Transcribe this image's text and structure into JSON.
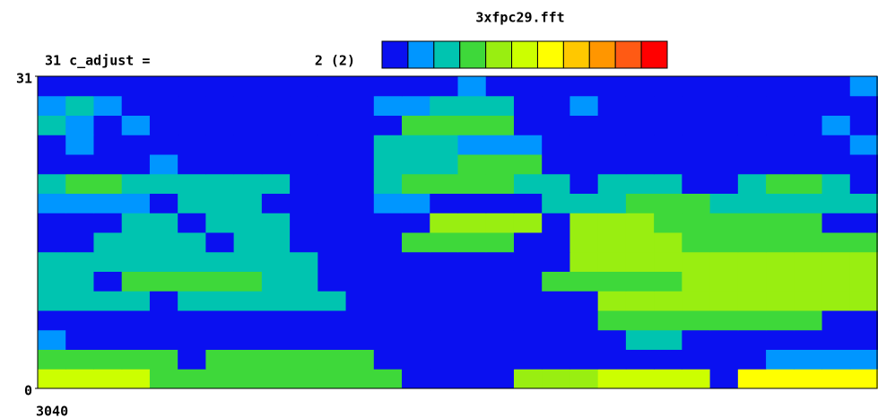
{
  "chart_data": {
    "type": "heatmap",
    "title": "3xfpc29.fft",
    "c_adjust_label": "31 c_adjust =",
    "c_adjust_value": "2 (2)",
    "ylim": [
      0,
      31
    ],
    "yticks": [
      0,
      31
    ],
    "xticks": [
      3040
    ],
    "colorscale": [
      "#0a10f0",
      "#0096ff",
      "#00c4b0",
      "#3ed83a",
      "#99ee11",
      "#ccff00",
      "#ffff00",
      "#ffc800",
      "#ff9600",
      "#ff5a14",
      "#ff0000"
    ],
    "z": [
      [
        5,
        5,
        5,
        5,
        3,
        3,
        3,
        3,
        3,
        3,
        3,
        3,
        3,
        0,
        0,
        0,
        0,
        4,
        4,
        4,
        5,
        5,
        5,
        5,
        0,
        6,
        6,
        6,
        6,
        6
      ],
      [
        3,
        3,
        3,
        3,
        3,
        0,
        3,
        3,
        3,
        3,
        3,
        3,
        0,
        0,
        0,
        0,
        0,
        0,
        0,
        0,
        0,
        0,
        0,
        0,
        0,
        0,
        1,
        1,
        1,
        1
      ],
      [
        1,
        0,
        0,
        0,
        0,
        0,
        0,
        0,
        0,
        0,
        0,
        0,
        0,
        0,
        0,
        0,
        0,
        0,
        0,
        0,
        0,
        2,
        2,
        0,
        0,
        0,
        0,
        0,
        0,
        0
      ],
      [
        0,
        0,
        0,
        0,
        0,
        0,
        0,
        0,
        0,
        0,
        0,
        0,
        0,
        0,
        0,
        0,
        0,
        0,
        0,
        0,
        3,
        3,
        3,
        3,
        3,
        3,
        3,
        3,
        0,
        0
      ],
      [
        2,
        2,
        2,
        2,
        0,
        2,
        2,
        2,
        2,
        2,
        2,
        0,
        0,
        0,
        0,
        0,
        0,
        0,
        0,
        0,
        4,
        4,
        4,
        4,
        4,
        4,
        4,
        4,
        4,
        4
      ],
      [
        2,
        2,
        0,
        3,
        3,
        3,
        3,
        3,
        2,
        2,
        0,
        0,
        0,
        0,
        0,
        0,
        0,
        0,
        3,
        3,
        3,
        3,
        3,
        4,
        4,
        4,
        4,
        4,
        4,
        4
      ],
      [
        2,
        2,
        2,
        2,
        2,
        2,
        2,
        2,
        2,
        2,
        0,
        0,
        0,
        0,
        0,
        0,
        0,
        0,
        0,
        4,
        4,
        4,
        4,
        4,
        4,
        4,
        4,
        4,
        4,
        4
      ],
      [
        0,
        0,
        2,
        2,
        2,
        2,
        0,
        2,
        2,
        0,
        0,
        0,
        0,
        3,
        3,
        3,
        3,
        0,
        0,
        4,
        4,
        4,
        4,
        3,
        3,
        3,
        3,
        3,
        3,
        3
      ],
      [
        0,
        0,
        0,
        2,
        2,
        0,
        2,
        2,
        2,
        0,
        0,
        0,
        0,
        0,
        4,
        4,
        4,
        4,
        0,
        4,
        4,
        4,
        3,
        3,
        3,
        3,
        3,
        3,
        0,
        0
      ],
      [
        1,
        1,
        1,
        1,
        0,
        2,
        2,
        2,
        0,
        0,
        0,
        0,
        1,
        1,
        0,
        0,
        0,
        0,
        2,
        2,
        2,
        3,
        3,
        3,
        2,
        2,
        2,
        2,
        2,
        2
      ],
      [
        2,
        3,
        3,
        2,
        2,
        2,
        2,
        2,
        2,
        0,
        0,
        0,
        2,
        3,
        3,
        3,
        3,
        2,
        2,
        0,
        2,
        2,
        2,
        0,
        0,
        2,
        3,
        3,
        2,
        0
      ],
      [
        0,
        0,
        0,
        0,
        1,
        0,
        0,
        0,
        0,
        0,
        0,
        0,
        2,
        2,
        2,
        3,
        3,
        3,
        0,
        0,
        0,
        0,
        0,
        0,
        0,
        0,
        0,
        0,
        0,
        0
      ],
      [
        0,
        1,
        0,
        0,
        0,
        0,
        0,
        0,
        0,
        0,
        0,
        0,
        2,
        2,
        2,
        1,
        1,
        1,
        0,
        0,
        0,
        0,
        0,
        0,
        0,
        0,
        0,
        0,
        0,
        1
      ],
      [
        2,
        1,
        0,
        1,
        0,
        0,
        0,
        0,
        0,
        0,
        0,
        0,
        0,
        3,
        3,
        3,
        3,
        0,
        0,
        0,
        0,
        0,
        0,
        0,
        0,
        0,
        0,
        0,
        1,
        0
      ],
      [
        1,
        2,
        1,
        0,
        0,
        0,
        0,
        0,
        0,
        0,
        0,
        0,
        1,
        1,
        2,
        2,
        2,
        0,
        0,
        1,
        0,
        0,
        0,
        0,
        0,
        0,
        0,
        0,
        0,
        0
      ],
      [
        0,
        0,
        0,
        0,
        0,
        0,
        0,
        0,
        0,
        0,
        0,
        0,
        0,
        0,
        0,
        1,
        0,
        0,
        0,
        0,
        0,
        0,
        0,
        0,
        0,
        0,
        0,
        0,
        0,
        1
      ]
    ]
  }
}
